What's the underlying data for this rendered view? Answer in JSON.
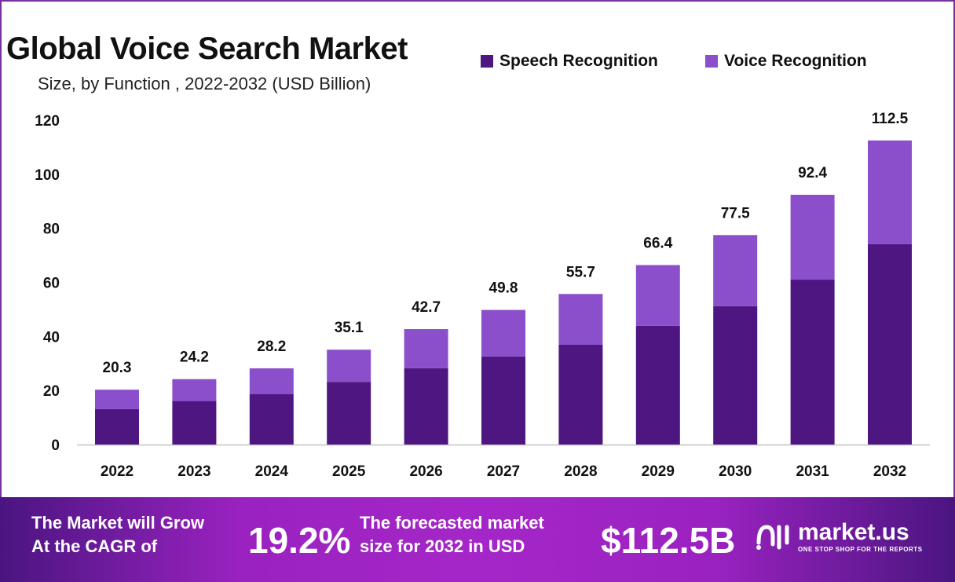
{
  "chart_data": {
    "type": "bar",
    "stacked": true,
    "title": "Global Voice Search Market",
    "subtitle": "Size, by Function , 2022-2032 (USD Billion)",
    "xlabel": "",
    "ylabel": "",
    "categories": [
      "2022",
      "2023",
      "2024",
      "2025",
      "2026",
      "2027",
      "2028",
      "2029",
      "2030",
      "2031",
      "2032"
    ],
    "series": [
      {
        "name": "Speech Recognition",
        "color": "#4e1680",
        "values": [
          13.1,
          16.1,
          18.7,
          23.2,
          28.2,
          32.6,
          36.9,
          43.9,
          51.2,
          61.0,
          74.1
        ]
      },
      {
        "name": "Voice Recognition",
        "color": "#8c4fcc",
        "values": [
          7.2,
          8.1,
          9.5,
          11.9,
          14.5,
          17.2,
          18.8,
          22.5,
          26.3,
          31.4,
          38.4
        ]
      }
    ],
    "totals": [
      "20.3",
      "24.2",
      "28.2",
      "35.1",
      "42.7",
      "49.8",
      "55.7",
      "66.4",
      "77.5",
      "92.4",
      "112.5"
    ],
    "ylim": [
      0,
      120
    ],
    "yticks": [
      "0",
      "20",
      "40",
      "60",
      "80",
      "100",
      "120"
    ],
    "grid": false,
    "legend": "top-right"
  },
  "footer": {
    "cagr_text_1": "The Market will Grow",
    "cagr_text_2": "At the CAGR of",
    "cagr_value": "19.2%",
    "forecast_text_1": "The forecasted market",
    "forecast_text_2": "size for 2032 in USD",
    "forecast_value": "$112.5B",
    "logo_name": "market.us",
    "logo_tagline": "ONE STOP SHOP FOR THE REPORTS"
  }
}
